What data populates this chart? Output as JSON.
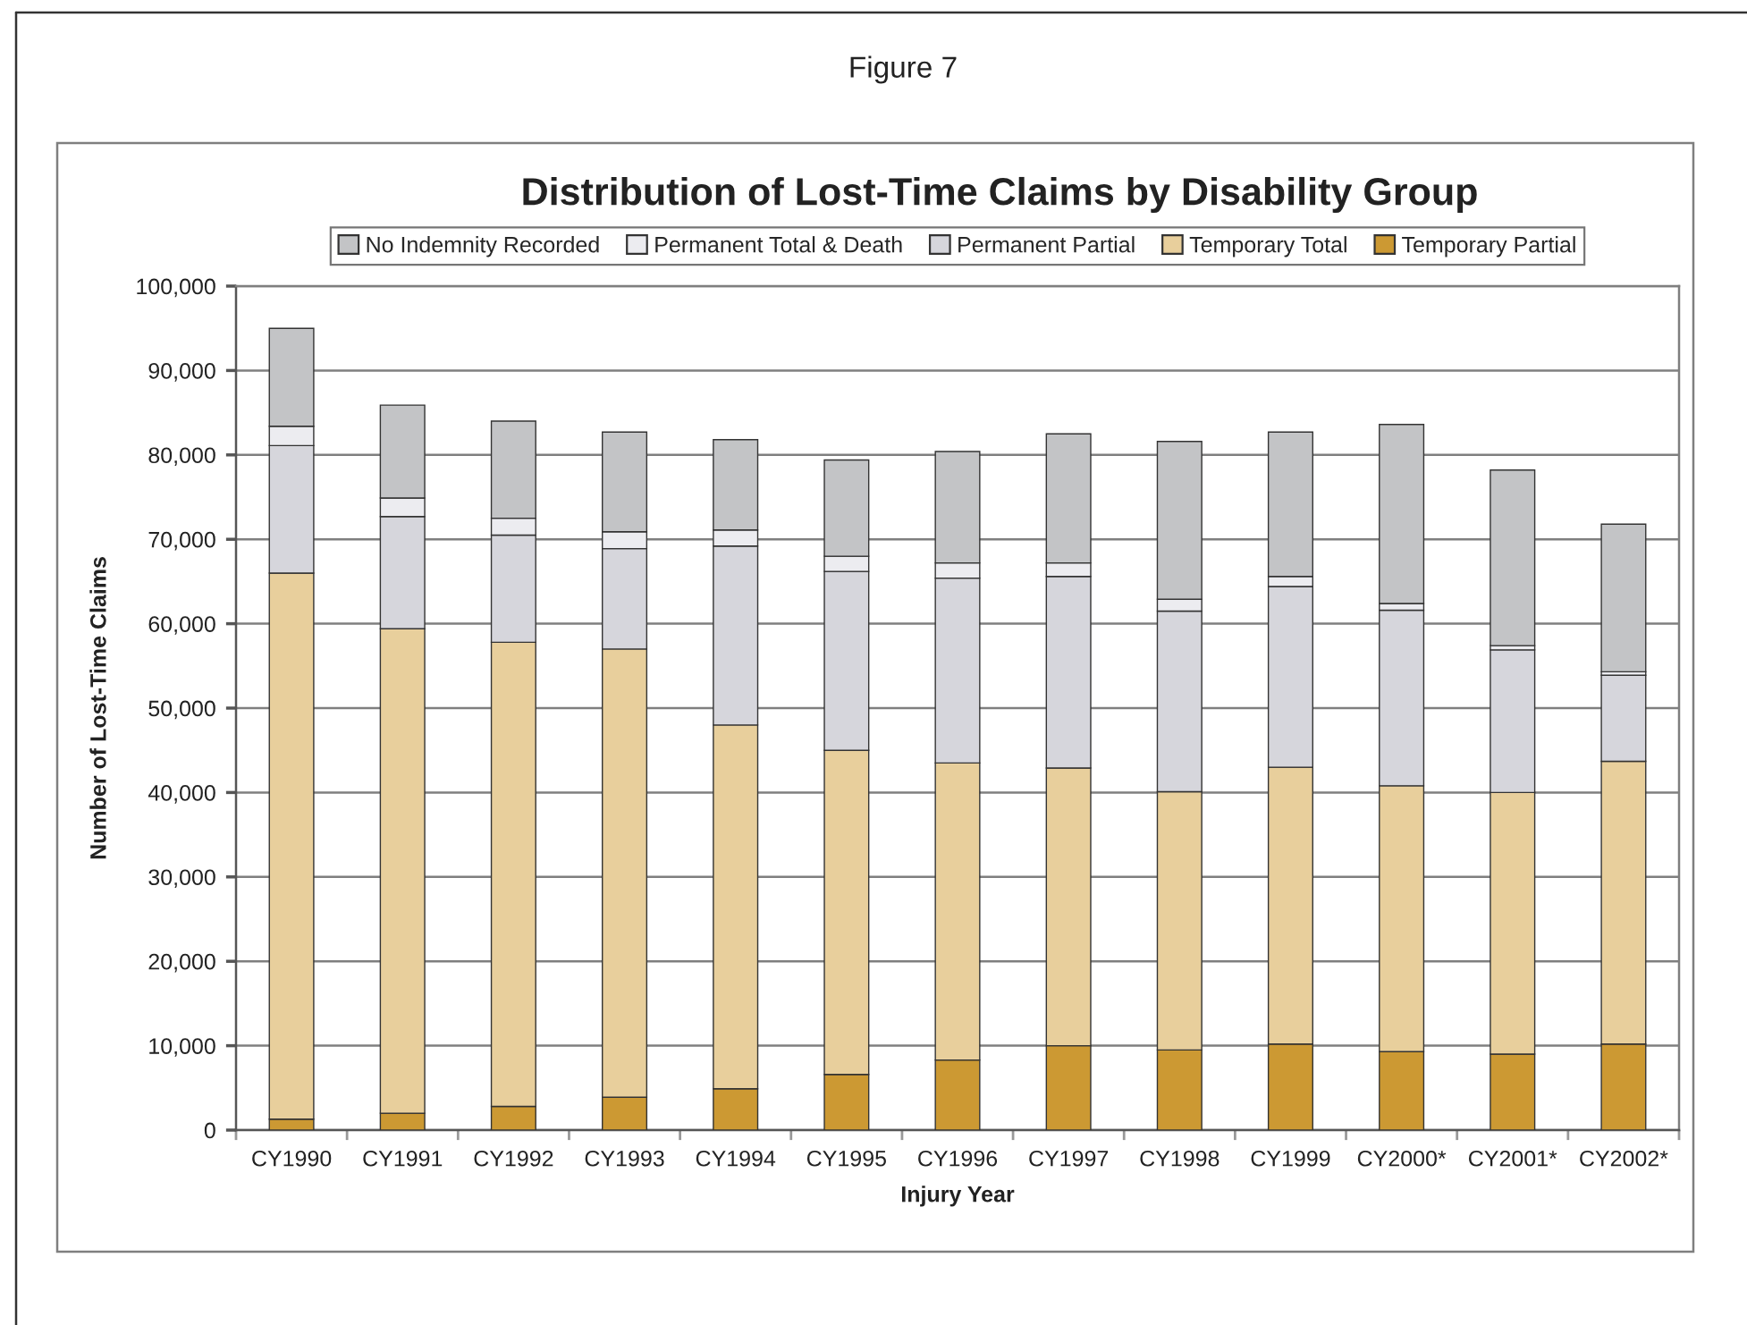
{
  "chart_data": {
    "type": "bar",
    "stacked": true,
    "title": "Distribution of Lost-Time Claims by Disability Group",
    "annotations": [
      "Figure 7"
    ],
    "xlabel": "Injury Year",
    "ylabel": "Number of Lost-Time Claims",
    "categories": [
      "CY1990",
      "CY1991",
      "CY1992",
      "CY1993",
      "CY1994",
      "CY1995",
      "CY1996",
      "CY1997",
      "CY1998",
      "CY1999",
      "CY2000*",
      "CY2001*",
      "CY2002*"
    ],
    "series": [
      {
        "name": "Temporary Partial",
        "color": "#cc9933",
        "values": [
          1300,
          2000,
          2800,
          3900,
          4900,
          6600,
          8300,
          10000,
          9500,
          10200,
          9300,
          9000,
          10200
        ]
      },
      {
        "name": "Temporary Total",
        "color": "#e8cf9c",
        "values": [
          64700,
          57400,
          55000,
          53100,
          43100,
          38400,
          35200,
          32900,
          30600,
          32800,
          31500,
          31000,
          33500
        ]
      },
      {
        "name": "Permanent Partial",
        "color": "#d6d6dc",
        "values": [
          15100,
          13300,
          12700,
          11900,
          21200,
          21200,
          21900,
          22700,
          21400,
          21400,
          20800,
          16900,
          10200
        ]
      },
      {
        "name": "Permanent Total & Death",
        "color": "#ececf0",
        "values": [
          2300,
          2200,
          2000,
          2000,
          1900,
          1800,
          1800,
          1600,
          1400,
          1200,
          800,
          500,
          400
        ]
      },
      {
        "name": "No Indemnity Recorded",
        "color": "#c3c4c6",
        "values": [
          11600,
          11000,
          11500,
          11800,
          10700,
          11400,
          13200,
          15300,
          18700,
          17100,
          21200,
          20800,
          17500
        ]
      }
    ],
    "ylim": [
      0,
      100000
    ],
    "yticks": [
      0,
      {
        "value": 10000,
        "label": "10,000"
      },
      {
        "value": 20000,
        "label": "20,000"
      },
      {
        "value": 30000,
        "label": "30,000"
      },
      {
        "value": 40000,
        "label": "40,000"
      },
      {
        "value": 50000,
        "label": "50,000"
      },
      {
        "value": 60000,
        "label": "60,000"
      },
      {
        "value": 70000,
        "label": "70,000"
      },
      {
        "value": 80000,
        "label": "80,000"
      },
      {
        "value": 90000,
        "label": "90,000"
      },
      {
        "value": 100000,
        "label": "100,000"
      }
    ],
    "grid": "y",
    "legend": "top"
  }
}
